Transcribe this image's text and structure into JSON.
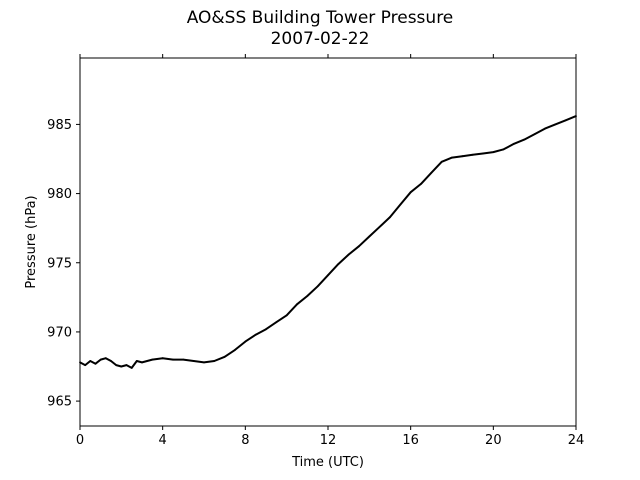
{
  "chart_data": {
    "type": "line",
    "title": "AO&SS Building Tower Pressure",
    "subtitle": "2007-02-22",
    "xlabel": "Time (UTC)",
    "ylabel": "Pressure (hPa)",
    "xlim": [
      0,
      24
    ],
    "ylim": [
      963.2,
      989.8
    ],
    "xticks": [
      0,
      4,
      8,
      12,
      16,
      20,
      24
    ],
    "yticks": [
      965,
      970,
      975,
      980,
      985
    ],
    "grid": false,
    "series": [
      {
        "color": "#000000",
        "x": [
          0,
          0.25,
          0.5,
          0.75,
          1.0,
          1.25,
          1.5,
          1.75,
          2.0,
          2.25,
          2.5,
          2.75,
          3.0,
          3.5,
          4.0,
          4.5,
          5.0,
          5.5,
          6.0,
          6.5,
          7.0,
          7.5,
          8.0,
          8.5,
          9.0,
          9.5,
          10.0,
          10.5,
          11.0,
          11.5,
          12.0,
          12.5,
          13.0,
          13.5,
          14.0,
          14.5,
          15.0,
          15.5,
          16.0,
          16.5,
          17.0,
          17.5,
          18.0,
          18.5,
          19.0,
          19.5,
          20.0,
          20.5,
          21.0,
          21.5,
          22.0,
          22.5,
          23.0,
          23.5,
          24.0
        ],
        "y": [
          967.8,
          967.6,
          967.9,
          967.7,
          968.0,
          968.1,
          967.9,
          967.6,
          967.5,
          967.6,
          967.4,
          967.9,
          967.8,
          968.0,
          968.1,
          968.0,
          968.0,
          967.9,
          967.8,
          967.9,
          968.2,
          968.7,
          969.3,
          969.8,
          970.2,
          970.7,
          971.2,
          972.0,
          972.6,
          973.3,
          974.1,
          974.9,
          975.6,
          976.2,
          976.9,
          977.6,
          978.3,
          979.2,
          980.1,
          980.7,
          981.5,
          982.3,
          982.6,
          982.7,
          982.8,
          982.9,
          983.0,
          983.2,
          983.6,
          983.9,
          984.3,
          984.7,
          985.0,
          985.3,
          985.6
        ]
      }
    ]
  }
}
